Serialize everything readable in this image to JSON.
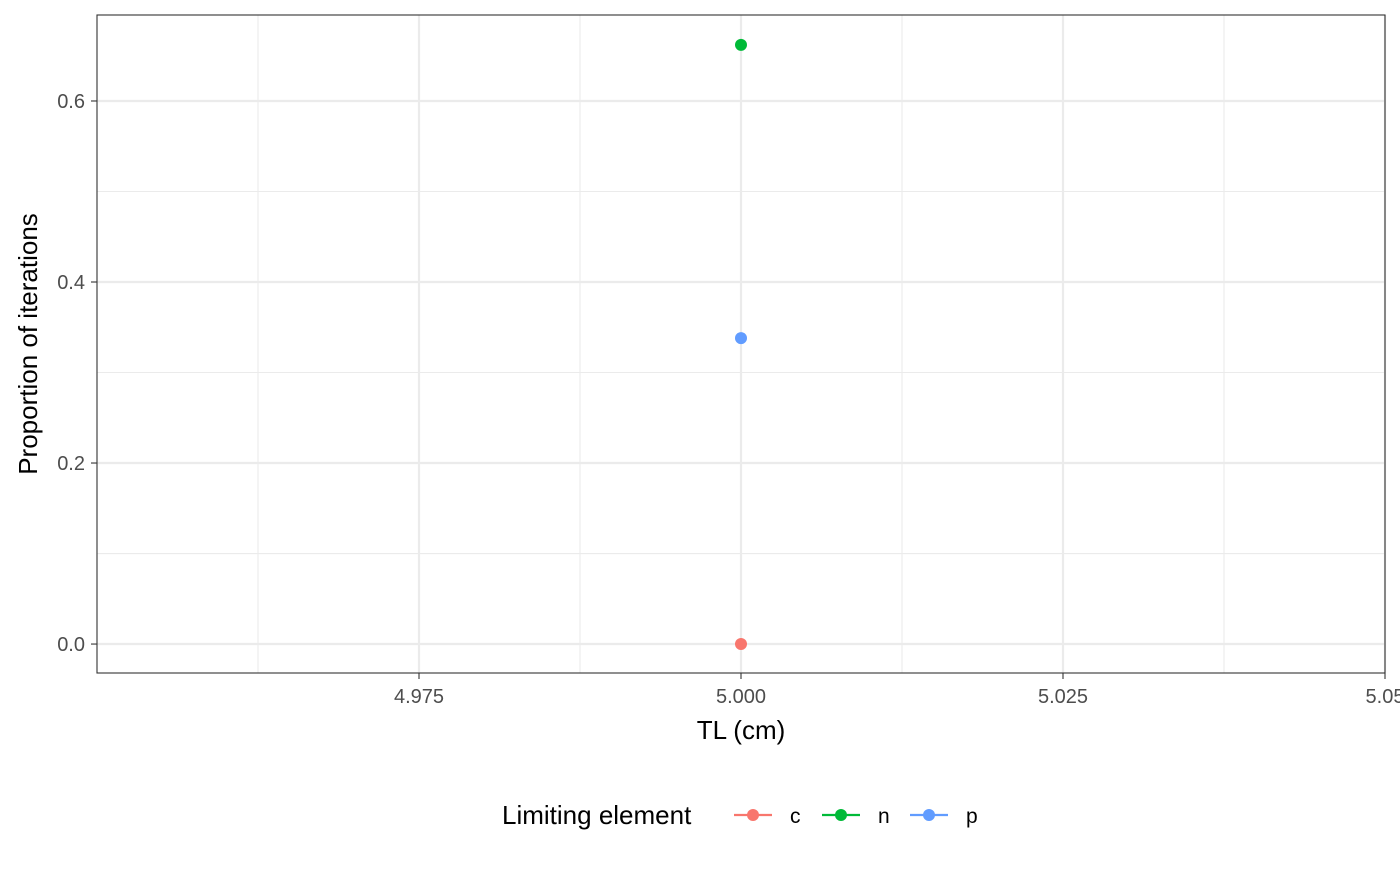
{
  "chart_data": {
    "type": "scatter",
    "title": "",
    "xlabel": "TL (cm)",
    "ylabel": "Proportion of iterations",
    "xlim": [
      4.95,
      5.05
    ],
    "ylim": [
      -0.032,
      0.695
    ],
    "x_ticks": [
      4.975,
      5.0,
      5.025,
      5.05
    ],
    "x_tick_labels": [
      "4.975",
      "5.000",
      "5.025",
      "5.05"
    ],
    "x_minor_ticks": [
      4.9625,
      4.9875,
      5.0125,
      5.0375
    ],
    "y_ticks": [
      0.0,
      0.2,
      0.4,
      0.6
    ],
    "y_tick_labels": [
      "0.0",
      "0.2",
      "0.4",
      "0.6"
    ],
    "y_minor_ticks": [
      0.1,
      0.3,
      0.5
    ],
    "grid": true,
    "legend": {
      "title": "Limiting element",
      "position": "bottom"
    },
    "series": [
      {
        "name": "c",
        "color": "#F8766D",
        "x": [
          5.0
        ],
        "y": [
          0.0
        ]
      },
      {
        "name": "n",
        "color": "#00BA38",
        "x": [
          5.0
        ],
        "y": [
          0.662
        ]
      },
      {
        "name": "p",
        "color": "#619CFF",
        "x": [
          5.0
        ],
        "y": [
          0.338
        ]
      }
    ]
  }
}
